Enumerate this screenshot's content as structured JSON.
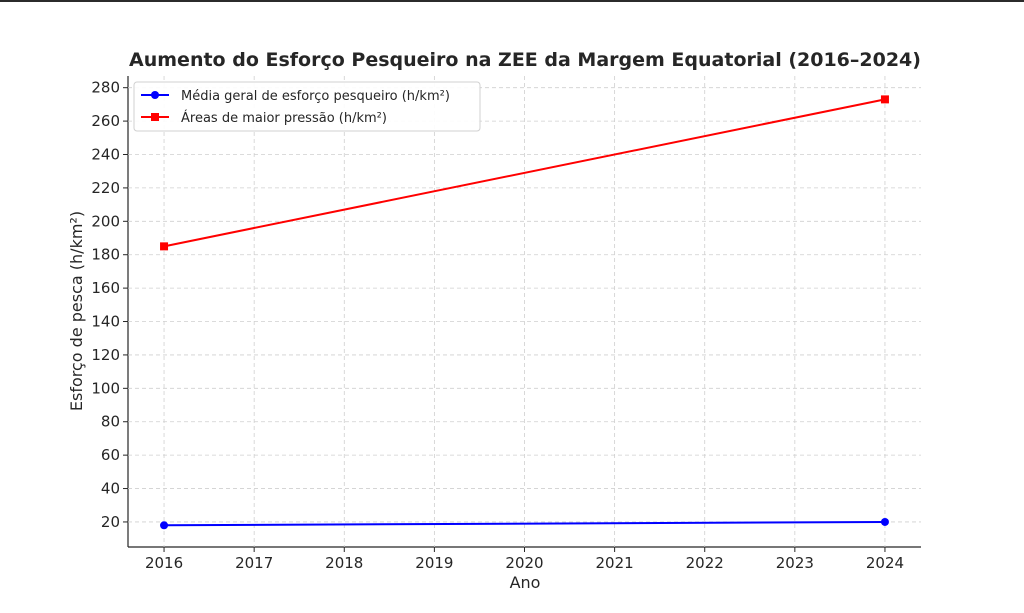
{
  "chart_data": {
    "type": "line",
    "title": "Aumento do Esforço Pesqueiro na ZEE da Margem Equatorial (2016–2024)",
    "xlabel": "Ano",
    "ylabel": "Esforço de pesca (h/km²)",
    "x_ticks": [
      "2016",
      "2017",
      "2018",
      "2019",
      "2020",
      "2021",
      "2022",
      "2023",
      "2024"
    ],
    "y_ticks": [
      "20",
      "40",
      "60",
      "80",
      "100",
      "120",
      "140",
      "160",
      "180",
      "200",
      "220",
      "240",
      "260",
      "280"
    ],
    "xlim": [
      2015.6,
      2024.4
    ],
    "ylim": [
      5,
      287
    ],
    "grid": true,
    "legend_position": "top-left",
    "series": [
      {
        "name": "Média geral de esforço pesqueiro (h/km²)",
        "color": "#0000ff",
        "marker": "circle",
        "x": [
          2016,
          2024
        ],
        "y": [
          18,
          20
        ]
      },
      {
        "name": "Áreas de maior pressão (h/km²)",
        "color": "#ff0000",
        "marker": "square",
        "x": [
          2016,
          2024
        ],
        "y": [
          185,
          273
        ]
      }
    ]
  }
}
